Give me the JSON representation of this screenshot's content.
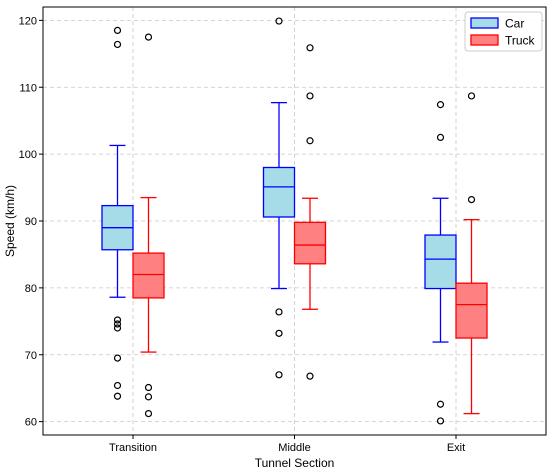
{
  "chart_data": {
    "type": "boxplot",
    "title": "",
    "xlabel": "Tunnel Section",
    "ylabel": "Speed (km/h)",
    "ylim": [
      58,
      122
    ],
    "yticks": [
      60,
      70,
      80,
      90,
      100,
      110,
      120
    ],
    "grid": true,
    "legend_position": "top-right",
    "categories": [
      "Transition",
      "Middle",
      "Exit"
    ],
    "series": [
      {
        "name": "Car",
        "fill": "#a6dce8",
        "stroke": "#0000ff",
        "boxes": [
          {
            "whisker_low": 78.6,
            "q1": 85.7,
            "median": 89.0,
            "q3": 92.3,
            "whisker_high": 101.3,
            "outliers": [
              118.5,
              116.4,
              75.2,
              74.6,
              74.0,
              69.5,
              65.4,
              63.8
            ]
          },
          {
            "whisker_low": 79.9,
            "q1": 90.6,
            "median": 95.1,
            "q3": 98.0,
            "whisker_high": 107.7,
            "outliers": [
              119.9,
              76.4,
              73.2,
              67.0
            ]
          },
          {
            "whisker_low": 71.9,
            "q1": 79.9,
            "median": 84.3,
            "q3": 87.9,
            "whisker_high": 93.4,
            "outliers": [
              107.4,
              102.5,
              62.6,
              60.1
            ]
          }
        ]
      },
      {
        "name": "Truck",
        "fill": "#ff8080",
        "stroke": "#ff0000",
        "boxes": [
          {
            "whisker_low": 70.4,
            "q1": 78.5,
            "median": 82.0,
            "q3": 85.2,
            "whisker_high": 93.5,
            "outliers": [
              117.5,
              65.1,
              63.7,
              61.2
            ]
          },
          {
            "whisker_low": 76.8,
            "q1": 83.6,
            "median": 86.4,
            "q3": 89.8,
            "whisker_high": 93.4,
            "outliers": [
              115.9,
              108.7,
              102.0,
              66.8
            ]
          },
          {
            "whisker_low": 61.2,
            "q1": 72.5,
            "median": 77.5,
            "q3": 80.7,
            "whisker_high": 90.2,
            "outliers": [
              108.7,
              93.2
            ]
          }
        ]
      }
    ]
  }
}
